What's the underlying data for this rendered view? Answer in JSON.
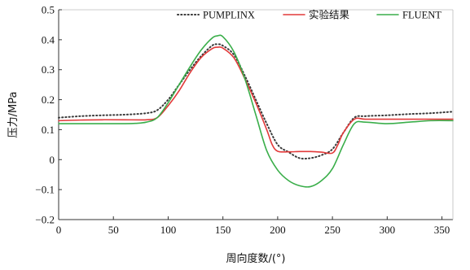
{
  "chart_data": {
    "type": "line",
    "title": "",
    "xlabel": "周向度数/(°)",
    "ylabel": "压力/MPa",
    "xlim": [
      0,
      360
    ],
    "ylim": [
      -0.2,
      0.5
    ],
    "xticks": [
      0,
      50,
      100,
      150,
      200,
      250,
      300,
      350
    ],
    "yticks": [
      -0.2,
      -0.1,
      0,
      0.1,
      0.2,
      0.3,
      0.4,
      0.5
    ],
    "ytick_labels": [
      "−0.2",
      "−0.1",
      "0",
      "0.1",
      "0.2",
      "0.3",
      "0.4",
      "0.5"
    ],
    "grid": false,
    "legend_position": "top",
    "series": [
      {
        "name": "PUMPLINX",
        "color": "#3a3a3a",
        "style": "dotted",
        "x": [
          0,
          20,
          40,
          60,
          80,
          90,
          100,
          110,
          120,
          130,
          140,
          145,
          150,
          160,
          170,
          180,
          190,
          200,
          210,
          220,
          230,
          240,
          250,
          260,
          270,
          280,
          300,
          320,
          340,
          360
        ],
        "y": [
          0.14,
          0.145,
          0.148,
          0.15,
          0.155,
          0.165,
          0.2,
          0.25,
          0.3,
          0.345,
          0.38,
          0.385,
          0.38,
          0.35,
          0.28,
          0.2,
          0.12,
          0.05,
          0.025,
          0.005,
          0.005,
          0.015,
          0.035,
          0.09,
          0.14,
          0.145,
          0.148,
          0.152,
          0.155,
          0.16
        ]
      },
      {
        "name": "实验结果",
        "color": "#e23a3a",
        "style": "solid",
        "x": [
          0,
          20,
          40,
          60,
          80,
          90,
          100,
          110,
          120,
          130,
          140,
          145,
          150,
          160,
          170,
          180,
          190,
          195,
          200,
          210,
          220,
          230,
          240,
          250,
          255,
          260,
          270,
          280,
          300,
          320,
          340,
          360
        ],
        "y": [
          0.13,
          0.132,
          0.133,
          0.133,
          0.133,
          0.14,
          0.18,
          0.23,
          0.29,
          0.34,
          0.37,
          0.375,
          0.372,
          0.34,
          0.27,
          0.19,
          0.1,
          0.05,
          0.028,
          0.026,
          0.027,
          0.027,
          0.025,
          0.022,
          0.05,
          0.09,
          0.135,
          0.135,
          0.135,
          0.135,
          0.135,
          0.135
        ]
      },
      {
        "name": "FLUENT",
        "color": "#3aae4a",
        "style": "solid",
        "x": [
          0,
          20,
          40,
          60,
          70,
          80,
          90,
          100,
          110,
          120,
          130,
          140,
          145,
          150,
          160,
          170,
          180,
          190,
          200,
          210,
          220,
          230,
          240,
          250,
          260,
          270,
          280,
          300,
          320,
          340,
          360
        ],
        "y": [
          0.12,
          0.12,
          0.12,
          0.12,
          0.121,
          0.125,
          0.14,
          0.19,
          0.25,
          0.31,
          0.365,
          0.405,
          0.413,
          0.41,
          0.36,
          0.27,
          0.15,
          0.03,
          -0.035,
          -0.07,
          -0.087,
          -0.09,
          -0.07,
          -0.03,
          0.05,
          0.12,
          0.125,
          0.12,
          0.125,
          0.13,
          0.13
        ]
      }
    ]
  }
}
